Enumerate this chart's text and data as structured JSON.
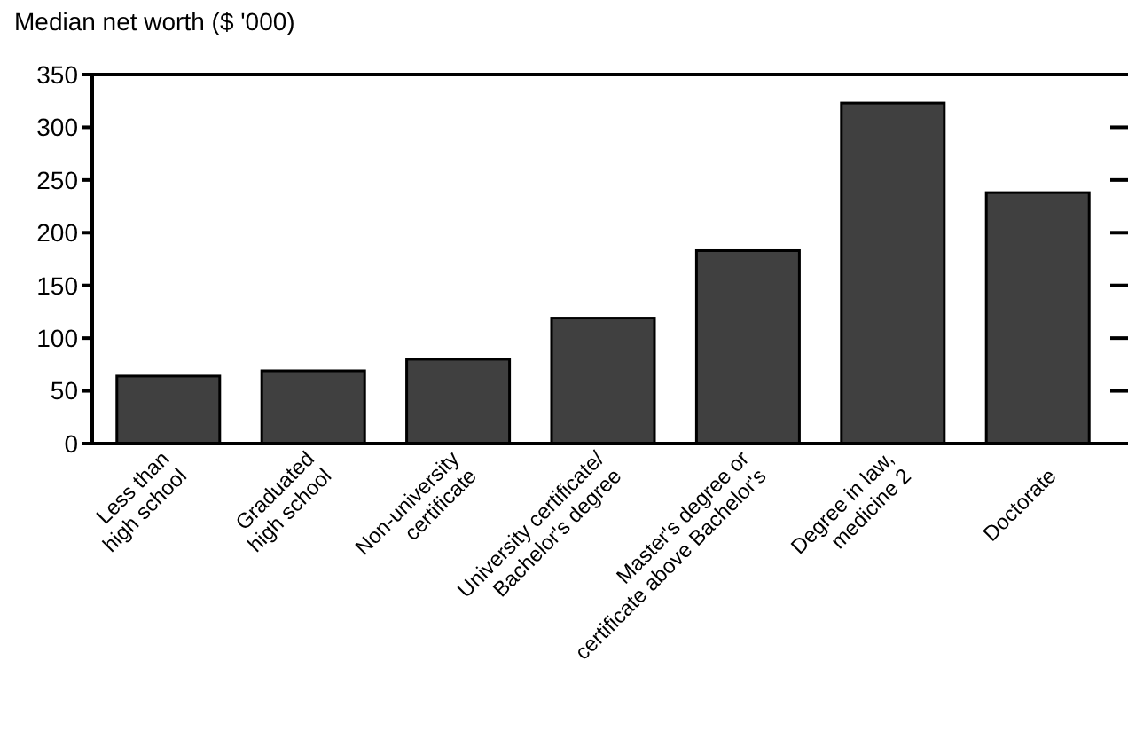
{
  "chart_data": {
    "type": "bar",
    "title": "Median net worth ($ '000)",
    "categories": [
      "Less than\nhigh school",
      "Graduated\nhigh school",
      "Non-university\ncertificate",
      "University certificate/\nBachelor's degree",
      "Master's degree or\ncertificate above Bachelor's",
      "Degree in law,\nmedicine  2",
      "Doctorate"
    ],
    "values": [
      64,
      69,
      80,
      119,
      183,
      323,
      238
    ],
    "color": "#404040",
    "ylim": [
      0,
      350
    ],
    "yticks": [
      0,
      50,
      100,
      150,
      200,
      250,
      300,
      350
    ],
    "grid": false
  }
}
